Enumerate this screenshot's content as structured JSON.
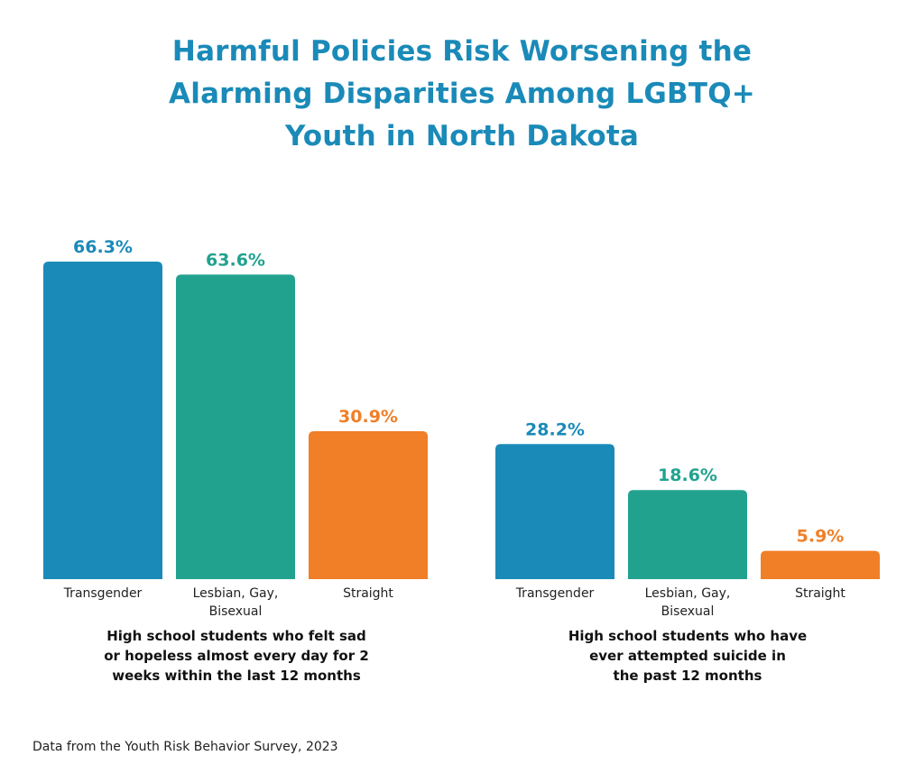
{
  "title_lines": [
    "Harmful Policies Risk Worsening the",
    "Alarming Disparities Among LGBTQ+",
    "Youth in North Dakota"
  ],
  "source": "Data from the Youth Risk Behavior Survey, 2023",
  "colors": {
    "title": "#1a8ab8",
    "transgender": "#1a8ab8",
    "lgb": "#21a28f",
    "straight": "#f07f27"
  },
  "chart_data": [
    {
      "type": "bar",
      "categories": [
        [
          "Transgender"
        ],
        [
          "Lesbian, Gay,",
          "Bisexual"
        ],
        [
          "Straight"
        ]
      ],
      "values": [
        66.3,
        63.6,
        30.9
      ],
      "value_labels": [
        "66.3%",
        "63.6%",
        "30.9%"
      ],
      "colors": [
        "#1a8ab8",
        "#21a28f",
        "#f07f27"
      ],
      "caption_lines": [
        "High school students who felt sad",
        "or hopeless almost every day for 2",
        "weeks within the last 12 months"
      ],
      "ylim": [
        0,
        100
      ]
    },
    {
      "type": "bar",
      "categories": [
        [
          "Transgender"
        ],
        [
          "Lesbian, Gay,",
          "Bisexual"
        ],
        [
          "Straight"
        ]
      ],
      "values": [
        28.2,
        18.6,
        5.9
      ],
      "value_labels": [
        "28.2%",
        "18.6%",
        "5.9%"
      ],
      "colors": [
        "#1a8ab8",
        "#21a28f",
        "#f07f27"
      ],
      "caption_lines": [
        "High school students who have",
        "ever attempted suicide in",
        "the past 12 months"
      ],
      "ylim": [
        0,
        100
      ]
    }
  ]
}
